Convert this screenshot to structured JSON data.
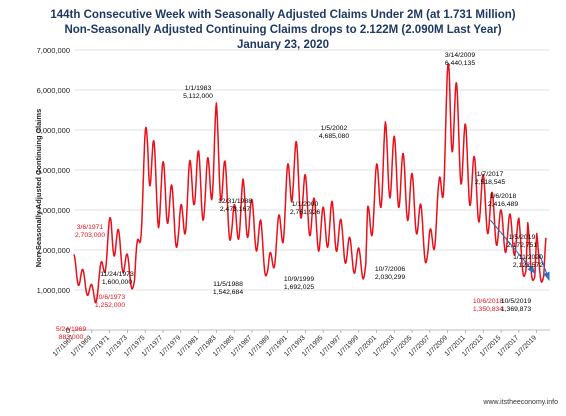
{
  "chart_data": {
    "type": "line",
    "title_lines": [
      "144th Consecutive Week with Seasonally Adjusted Claims Under 2M  (at 1.731 Million)",
      "Non-Seasonally Adjusted Continuing Claims drops to 2.122M (2.090M Last Year)",
      "January 23, 2020"
    ],
    "ylabel": "Non-Seasonally Adjusted Continuing Claims",
    "xlabel": "",
    "ylim": [
      0,
      7000000
    ],
    "y_ticks": [
      "0",
      "1,000,000",
      "2,000,000",
      "3,000,000",
      "4,000,000",
      "5,000,000",
      "6,000,000",
      "7,000,000"
    ],
    "x_ticks": [
      "1/7/1967",
      "1/7/1969",
      "1/7/1971",
      "1/7/1973",
      "1/7/1975",
      "1/7/1977",
      "1/7/1979",
      "1/7/1981",
      "1/7/1983",
      "1/7/1985",
      "1/7/1987",
      "1/7/1989",
      "1/7/1991",
      "1/7/1993",
      "1/7/1995",
      "1/7/1997",
      "1/7/1999",
      "1/7/2001",
      "1/7/2003",
      "1/7/2005",
      "1/7/2007",
      "1/7/2009",
      "1/7/2011",
      "1/7/2013",
      "1/7/2015",
      "1/7/2017",
      "1/7/2019"
    ],
    "grid": true,
    "series_color": "#e8101a",
    "series_anchors": [
      [
        1967.0,
        1700000
      ],
      [
        1969.4,
        883000
      ],
      [
        1971.2,
        2703000
      ],
      [
        1973.8,
        1252000
      ],
      [
        1975.3,
        5250000
      ],
      [
        1976.5,
        3500000
      ],
      [
        1977.2,
        3900000
      ],
      [
        1978.8,
        2600000
      ],
      [
        1980.5,
        4300000
      ],
      [
        1981.8,
        3600000
      ],
      [
        1983.0,
        5112000
      ],
      [
        1984.8,
        2700000
      ],
      [
        1986.0,
        3400000
      ],
      [
        1988.0,
        2473167
      ],
      [
        1988.8,
        1542684
      ],
      [
        1990.5,
        3000000
      ],
      [
        1991.6,
        4550000
      ],
      [
        1992.8,
        3600000
      ],
      [
        1994.5,
        2700000
      ],
      [
        1996.0,
        2900000
      ],
      [
        1998.2,
        2000000
      ],
      [
        1999.8,
        1692025
      ],
      [
        2000.0,
        2761926
      ],
      [
        2002.0,
        4685080
      ],
      [
        2003.5,
        4200000
      ],
      [
        2005.5,
        3300000
      ],
      [
        2006.8,
        2030299
      ],
      [
        2008.0,
        3300000
      ],
      [
        2009.2,
        6440135
      ],
      [
        2010.5,
        5000000
      ],
      [
        2012.0,
        3900000
      ],
      [
        2013.5,
        3300000
      ],
      [
        2015.0,
        2700000
      ],
      [
        2017.0,
        2518545
      ],
      [
        2017.8,
        1500000
      ],
      [
        2018.0,
        2416489
      ],
      [
        2018.8,
        1350834
      ],
      [
        2019.0,
        2172751
      ],
      [
        2019.8,
        1369873
      ],
      [
        2020.05,
        2122572
      ]
    ],
    "trend_arrows": [
      {
        "from": [
          2013.8,
          2750000
        ],
        "to": [
          2018.8,
          1420000
        ]
      },
      {
        "from": [
          2019.3,
          1900000
        ],
        "to": [
          2020.4,
          1250000
        ]
      }
    ],
    "annotations": [
      {
        "date": "3/6/1971",
        "value": "2,703,000",
        "color": "#e8101a",
        "x": 1971.2
      },
      {
        "date": "5/24/1969",
        "value": "883,000",
        "color": "#e8101a",
        "x": 1969.4
      },
      {
        "date": "10/6/1973",
        "value": "1,252,000",
        "color": "#e8101a",
        "x": 1973.8
      },
      {
        "date": "11/24/1973",
        "value": "1,600,000",
        "color": "#000000",
        "x": 1973.9
      },
      {
        "date": "1/1/1983",
        "value": "5,112,000",
        "color": "#000000",
        "x": 1983.0
      },
      {
        "date": "12/31/1988",
        "value": "2,473,167",
        "color": "#000000",
        "x": 1988.0
      },
      {
        "date": "11/5/1988",
        "value": "1,542,684",
        "color": "#000000",
        "x": 1988.8
      },
      {
        "date": "1/5/2002",
        "value": "4,685,080",
        "color": "#000000",
        "x": 2002.0
      },
      {
        "date": "1/1/2000",
        "value": "2,761,926",
        "color": "#000000",
        "x": 2000.0
      },
      {
        "date": "10/9/1999",
        "value": "1,692,025",
        "color": "#000000",
        "x": 1999.8
      },
      {
        "date": "10/7/2006",
        "value": "2,030,299",
        "color": "#000000",
        "x": 2006.8
      },
      {
        "date": "3/14/2009",
        "value": "6,440,135",
        "color": "#000000",
        "x": 2009.2
      },
      {
        "date": "1/7/2017",
        "value": "2,518,545",
        "color": "#000000",
        "x": 2017.0
      },
      {
        "date": "1/6/2018",
        "value": "2,416,489",
        "color": "#000000",
        "x": 2018.0
      },
      {
        "date": "1/5/2019",
        "value": "2,172,751",
        "color": "#000000",
        "x": 2019.0
      },
      {
        "date": "1/11/2020",
        "value": "2,122,572",
        "color": "#000000",
        "x": 2020.05
      },
      {
        "date": "10/6/2018",
        "value": "1,350,834",
        "color": "#e8101a",
        "x": 2018.8
      },
      {
        "date": "10/5/2019",
        "value": "1,369,873",
        "color": "#000000",
        "x": 2019.8
      }
    ],
    "footer": "www.itstheeconomy.info"
  }
}
